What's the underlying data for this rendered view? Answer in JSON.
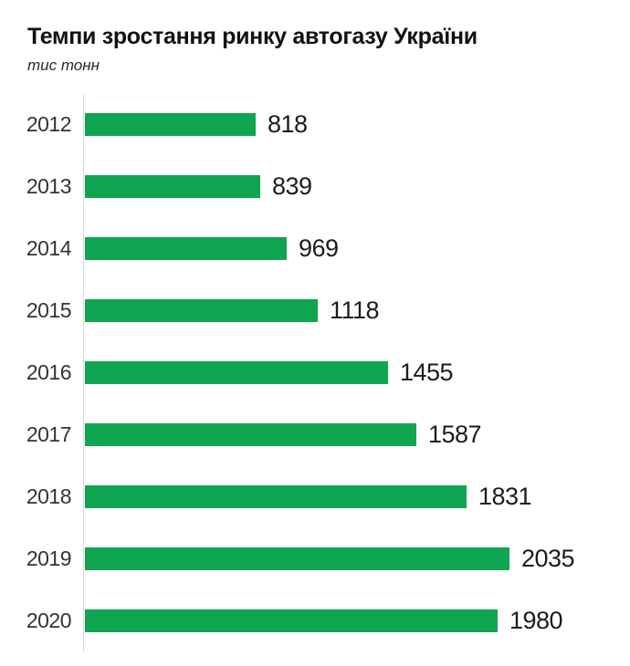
{
  "header": {
    "title": "Темпи зростання ринку автогазу України",
    "unit_label": "тис тонн"
  },
  "style": {
    "bar_color": "#10a551",
    "axis_color": "#d9d9d9",
    "title_color": "#111111",
    "label_color": "#333333",
    "value_color": "#1c1c1c"
  },
  "chart_data": {
    "type": "bar",
    "orientation": "horizontal",
    "title": "Темпи зростання ринку автогазу України",
    "unit": "тис тонн",
    "categories": [
      "2012",
      "2013",
      "2014",
      "2015",
      "2016",
      "2017",
      "2018",
      "2019",
      "2020"
    ],
    "values": [
      818,
      839,
      969,
      1118,
      1455,
      1587,
      1831,
      2035,
      1980
    ],
    "xlim": [
      0,
      2035
    ],
    "grid": false,
    "legend": false,
    "value_labels": "end-of-bar"
  }
}
